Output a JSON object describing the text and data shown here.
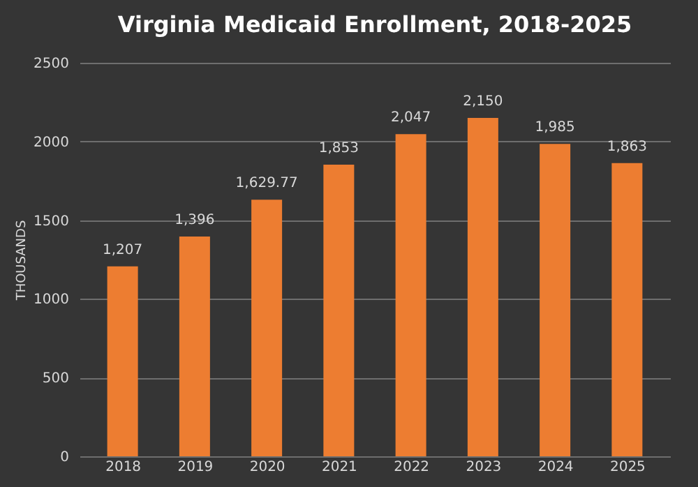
{
  "chart_data": {
    "type": "bar",
    "title": "Virginia Medicaid Enrollment, 2018-2025",
    "ylabel": "THOUSANDS",
    "categories": [
      "2018",
      "2019",
      "2020",
      "2021",
      "2022",
      "2023",
      "2024",
      "2025"
    ],
    "values": [
      1207,
      1396,
      1629.77,
      1853,
      2047,
      2150,
      1985,
      1863
    ],
    "value_labels": [
      "1,207",
      "1,396",
      "1,629.77",
      "1,853",
      "2,047",
      "2,150",
      "1,985",
      "1,863"
    ],
    "color": "#ed7d31",
    "ylim": [
      0,
      2500
    ],
    "yticks": [
      0,
      500,
      1000,
      1500,
      2000,
      2500
    ],
    "grid": "y"
  }
}
